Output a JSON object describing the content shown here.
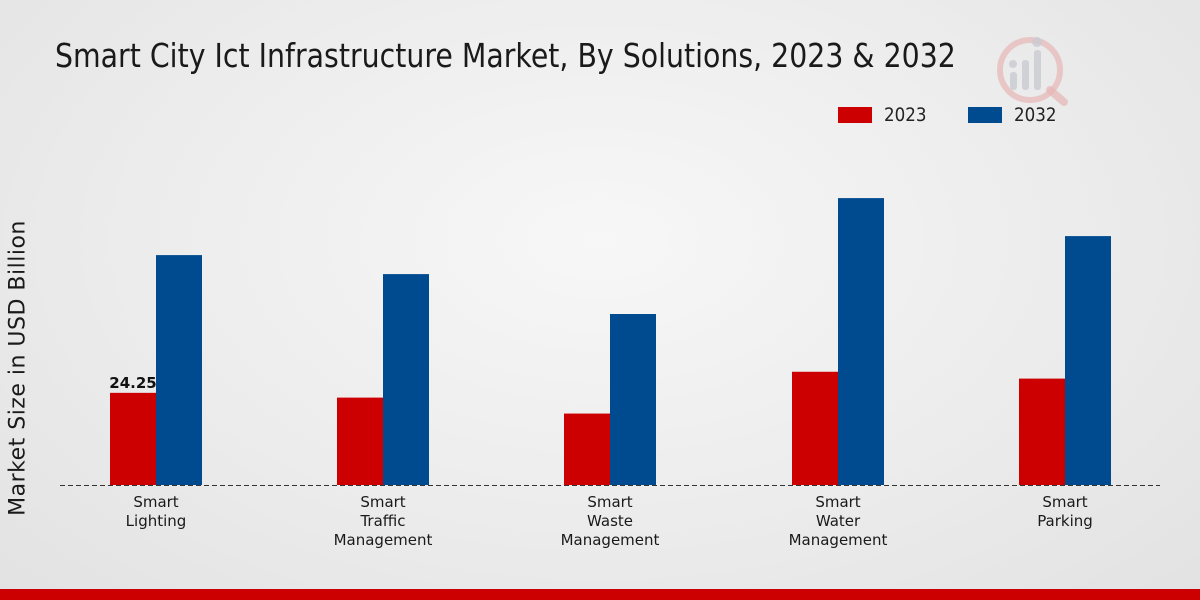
{
  "chart_data": {
    "type": "bar",
    "title": "Smart City Ict Infrastructure Market, By Solutions, 2023 & 2032",
    "ylabel": "Market Size in USD Billion",
    "xlabel": "",
    "categories": [
      [
        "Smart",
        "Lighting"
      ],
      [
        "Smart",
        "Traffic",
        "Management"
      ],
      [
        "Smart",
        "Waste",
        "Management"
      ],
      [
        "Smart",
        "Water",
        "Management"
      ],
      [
        "Smart",
        "Parking"
      ]
    ],
    "series": [
      {
        "name": "2023",
        "color": "#cc0000",
        "values": [
          24.25,
          23.0,
          18.8,
          29.8,
          28.0
        ]
      },
      {
        "name": "2032",
        "color": "#004a8f",
        "values": [
          60.5,
          55.5,
          45.0,
          75.5,
          65.5
        ]
      }
    ],
    "data_labels": [
      {
        "series": 0,
        "index": 0,
        "text": "24.25"
      }
    ],
    "ylim": [
      0,
      100
    ],
    "grid": false,
    "legend_position": "top-right"
  }
}
